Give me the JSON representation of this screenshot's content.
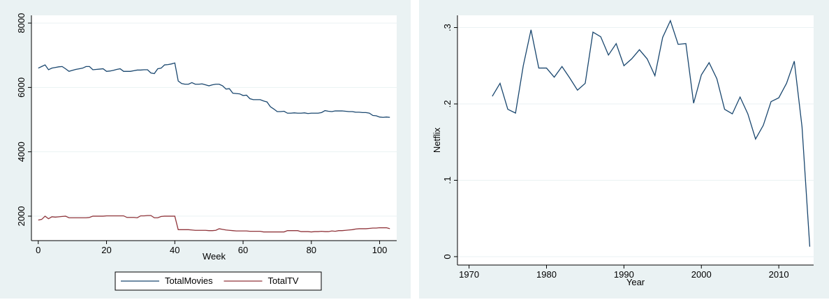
{
  "chart_data": [
    {
      "type": "line",
      "x_label": "Week",
      "legend": "bottom",
      "grid": true,
      "x": [
        0,
        1,
        2,
        3,
        4,
        5,
        6,
        7,
        8,
        9,
        10,
        11,
        12,
        13,
        14,
        15,
        16,
        17,
        18,
        19,
        20,
        21,
        22,
        23,
        24,
        25,
        26,
        27,
        28,
        29,
        30,
        31,
        32,
        33,
        34,
        35,
        36,
        37,
        38,
        39,
        40,
        41,
        42,
        43,
        44,
        45,
        46,
        47,
        48,
        49,
        50,
        51,
        52,
        53,
        54,
        55,
        56,
        57,
        58,
        59,
        60,
        61,
        62,
        63,
        64,
        65,
        66,
        67,
        68,
        69,
        70,
        71,
        72,
        73,
        74,
        75,
        76,
        77,
        78,
        79,
        80,
        81,
        82,
        83,
        84,
        85,
        86,
        87,
        88,
        89,
        90,
        91,
        92,
        93,
        94,
        95,
        96,
        97,
        98,
        99,
        100,
        101,
        102,
        103
      ],
      "series": [
        {
          "name": "TotalMovies",
          "color": "#1a476f",
          "values": [
            6600,
            6650,
            6700,
            6550,
            6600,
            6620,
            6640,
            6650,
            6580,
            6500,
            6530,
            6560,
            6580,
            6600,
            6650,
            6650,
            6550,
            6560,
            6570,
            6580,
            6500,
            6510,
            6530,
            6560,
            6580,
            6500,
            6500,
            6500,
            6520,
            6540,
            6540,
            6550,
            6550,
            6450,
            6430,
            6580,
            6600,
            6700,
            6710,
            6730,
            6760,
            6200,
            6120,
            6100,
            6100,
            6150,
            6100,
            6100,
            6110,
            6080,
            6050,
            6080,
            6100,
            6100,
            6050,
            5950,
            5960,
            5820,
            5810,
            5800,
            5750,
            5760,
            5650,
            5620,
            5620,
            5620,
            5580,
            5550,
            5400,
            5330,
            5250,
            5250,
            5260,
            5200,
            5200,
            5210,
            5200,
            5200,
            5210,
            5190,
            5200,
            5200,
            5200,
            5220,
            5280,
            5260,
            5250,
            5270,
            5270,
            5270,
            5260,
            5250,
            5250,
            5230,
            5230,
            5220,
            5220,
            5200,
            5130,
            5120,
            5080,
            5070,
            5080,
            5070
          ]
        },
        {
          "name": "TotalTV",
          "color": "#90353b",
          "values": [
            1880,
            1900,
            2000,
            1920,
            1980,
            1970,
            1980,
            1990,
            2000,
            1950,
            1950,
            1950,
            1950,
            1950,
            1950,
            1960,
            2000,
            2000,
            2000,
            2000,
            2010,
            2010,
            2010,
            2010,
            2010,
            2010,
            1960,
            1960,
            1960,
            1950,
            2010,
            2010,
            2020,
            2020,
            1950,
            1950,
            1990,
            2000,
            2000,
            2000,
            2000,
            1580,
            1580,
            1580,
            1580,
            1570,
            1560,
            1560,
            1560,
            1560,
            1550,
            1550,
            1560,
            1610,
            1590,
            1570,
            1560,
            1550,
            1540,
            1540,
            1540,
            1540,
            1530,
            1530,
            1530,
            1530,
            1510,
            1510,
            1510,
            1510,
            1510,
            1510,
            1510,
            1550,
            1550,
            1550,
            1550,
            1520,
            1520,
            1520,
            1510,
            1520,
            1520,
            1530,
            1520,
            1520,
            1540,
            1530,
            1550,
            1550,
            1560,
            1570,
            1580,
            1600,
            1610,
            1610,
            1610,
            1620,
            1630,
            1630,
            1640,
            1640,
            1640,
            1610
          ]
        }
      ],
      "xlim": [
        -2,
        105
      ],
      "xticks": [
        0,
        20,
        40,
        60,
        80,
        100
      ],
      "ylim": [
        1240,
        8240
      ],
      "yticks": [
        2000,
        4000,
        6000,
        8000
      ]
    },
    {
      "type": "line",
      "x_label": "Year",
      "y_label": "Netflix",
      "grid": true,
      "color": "#1a476f",
      "x": [
        1973,
        1974,
        1975,
        1976,
        1977,
        1978,
        1979,
        1980,
        1981,
        1982,
        1983,
        1984,
        1985,
        1986,
        1987,
        1988,
        1989,
        1990,
        1991,
        1992,
        1993,
        1994,
        1995,
        1996,
        1997,
        1998,
        1999,
        2000,
        2001,
        2002,
        2003,
        2004,
        2005,
        2006,
        2007,
        2008,
        2009,
        2010,
        2011,
        2012,
        2013,
        2014
      ],
      "values": [
        0.21,
        0.227,
        0.193,
        0.188,
        0.25,
        0.297,
        0.247,
        0.247,
        0.235,
        0.249,
        0.234,
        0.218,
        0.227,
        0.294,
        0.288,
        0.264,
        0.279,
        0.25,
        0.259,
        0.271,
        0.259,
        0.237,
        0.287,
        0.309,
        0.278,
        0.279,
        0.201,
        0.238,
        0.254,
        0.233,
        0.193,
        0.187,
        0.209,
        0.187,
        0.154,
        0.172,
        0.203,
        0.208,
        0.227,
        0.256,
        0.17,
        0.013
      ],
      "xlim": [
        1968.5,
        2014.5
      ],
      "xticks": [
        1970,
        1980,
        1990,
        2000,
        2010
      ],
      "ylim": [
        -0.011,
        0.316
      ],
      "yticks": [
        0,
        {
          "value": 0.1,
          "label": ".1"
        },
        {
          "value": 0.2,
          "label": ".2"
        },
        {
          "value": 0.3,
          "label": ".3"
        }
      ]
    }
  ]
}
